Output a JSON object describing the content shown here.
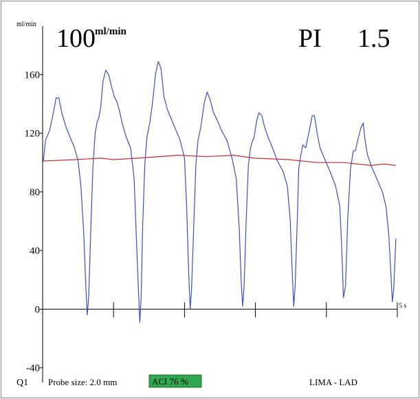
{
  "chart_data": {
    "type": "line",
    "y_label": "ml/min",
    "flow_value": "100",
    "flow_unit": "ml/min",
    "pi_label": "PI",
    "pi_value": "1.5",
    "footer": {
      "channel": "Q1",
      "probe": "Probe size: 2.0 mm",
      "aci": "ACI 76 %",
      "graft": "LIMA - LAD"
    },
    "xlim": [
      0,
      5
    ],
    "xticks": [
      1,
      2,
      3,
      4,
      {
        "value": 5,
        "label": "5 s"
      }
    ],
    "ylim": [
      -50,
      193
    ],
    "yticks": [
      -40,
      0,
      40,
      80,
      120,
      160
    ],
    "aci_color": "#2fa84f",
    "series": [
      {
        "color": "#3a4fb8",
        "x": [
          0.01,
          0.04,
          0.1,
          0.16,
          0.19,
          0.23,
          0.27,
          0.33,
          0.39,
          0.45,
          0.5,
          0.54,
          0.58,
          0.61,
          0.63,
          0.65,
          0.68,
          0.71,
          0.74,
          0.77,
          0.79,
          0.82,
          0.85,
          0.89,
          0.93,
          0.97,
          1.01,
          1.05,
          1.09,
          1.12,
          1.18,
          1.24,
          1.29,
          1.32,
          1.35,
          1.37,
          1.39,
          1.41,
          1.44,
          1.47,
          1.51,
          1.55,
          1.59,
          1.63,
          1.67,
          1.71,
          1.76,
          1.82,
          1.88,
          1.94,
          2.0,
          2.03,
          2.06,
          2.08,
          2.1,
          2.13,
          2.16,
          2.19,
          2.23,
          2.28,
          2.32,
          2.36,
          2.41,
          2.46,
          2.52,
          2.6,
          2.67,
          2.73,
          2.77,
          2.8,
          2.82,
          2.84,
          2.87,
          2.9,
          2.93,
          2.96,
          2.98,
          3.02,
          3.05,
          3.09,
          3.13,
          3.18,
          3.24,
          3.31,
          3.39,
          3.45,
          3.49,
          3.52,
          3.54,
          3.56,
          3.59,
          3.61,
          3.64,
          3.67,
          3.71,
          3.76,
          3.8,
          3.83,
          3.87,
          3.91,
          3.97,
          4.05,
          4.13,
          4.19,
          4.22,
          4.24,
          4.27,
          4.3,
          4.34,
          4.38,
          4.41,
          4.45,
          4.49,
          4.52,
          4.54,
          4.58,
          4.63,
          4.71,
          4.79,
          4.84,
          4.88,
          4.91,
          4.93,
          4.95,
          4.97,
          4.98
        ],
        "values": [
          101,
          115,
          122,
          136,
          144,
          144,
          134,
          124,
          117,
          110,
          101,
          84,
          51,
          14,
          -4,
          9,
          56,
          98,
          120,
          128,
          130,
          138,
          155,
          163,
          160,
          152,
          145,
          141,
          134,
          127,
          117,
          110,
          89,
          51,
          14,
          -9,
          9,
          56,
          98,
          117,
          127,
          141,
          160,
          169,
          164,
          145,
          136,
          129,
          122,
          115,
          103,
          70,
          23,
          0,
          14,
          56,
          98,
          115,
          124,
          141,
          148,
          143,
          134,
          129,
          122,
          115,
          103,
          89,
          56,
          18,
          2,
          16,
          61,
          98,
          110,
          115,
          117,
          129,
          134,
          132,
          124,
          117,
          110,
          101,
          94,
          84,
          61,
          23,
          2,
          16,
          61,
          96,
          105,
          112,
          110,
          122,
          132,
          132,
          120,
          110,
          103,
          94,
          84,
          70,
          37,
          8,
          16,
          61,
          96,
          108,
          108,
          117,
          124,
          127,
          117,
          105,
          98,
          89,
          80,
          70,
          51,
          23,
          5,
          14,
          37,
          48
        ]
      },
      {
        "color": "#cc2b2b",
        "x": [
          0,
          0.47,
          0.81,
          1.0,
          1.34,
          1.92,
          2.31,
          2.69,
          2.98,
          3.47,
          3.86,
          4.24,
          4.63,
          4.82,
          4.98
        ],
        "values": [
          101,
          102,
          103,
          102,
          103,
          105,
          104,
          105,
          103,
          102,
          100,
          100,
          98,
          99,
          98
        ]
      }
    ]
  }
}
